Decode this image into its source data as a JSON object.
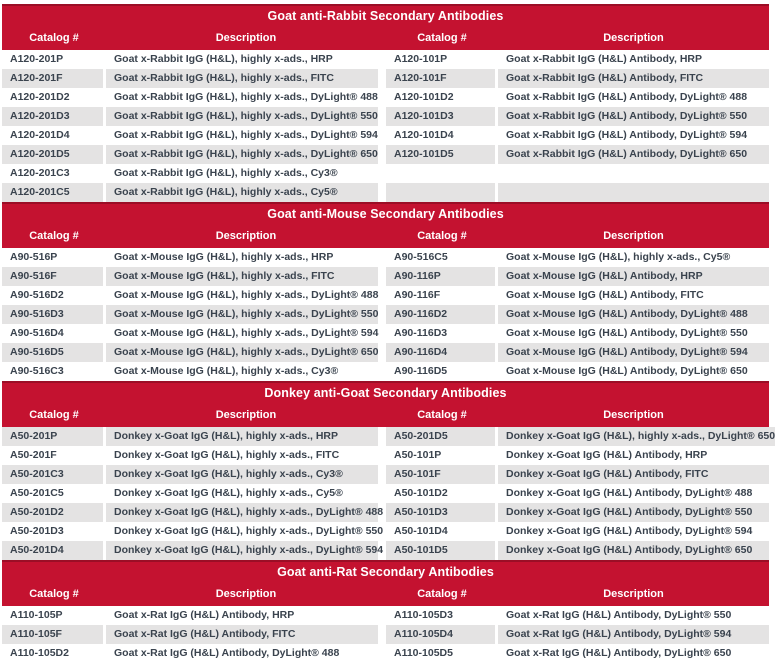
{
  "colors": {
    "bar_red": "#C41230",
    "bar_top_edge_dark_red": "#9B0E26",
    "stripe_gray": "#E4E3E3",
    "text_dark": "#3A434E",
    "header_text": "#FFFFFF"
  },
  "sections": [
    {
      "title": "Goat anti-Rabbit Secondary Antibodies",
      "columns": [
        "Catalog #",
        "Description",
        "Catalog #",
        "Description"
      ],
      "rows": [
        [
          "A120-201P",
          "Goat x-Rabbit IgG (H&L), highly x-ads., HRP",
          "A120-101P",
          "Goat x-Rabbit IgG (H&L) Antibody, HRP"
        ],
        [
          "A120-201F",
          "Goat x-Rabbit IgG (H&L), highly x-ads., FITC",
          "A120-101F",
          "Goat x-Rabbit IgG (H&L) Antibody, FITC"
        ],
        [
          "A120-201D2",
          "Goat x-Rabbit IgG (H&L), highly x-ads., DyLight® 488",
          "A120-101D2",
          "Goat x-Rabbit IgG (H&L) Antibody, DyLight® 488"
        ],
        [
          "A120-201D3",
          "Goat x-Rabbit IgG (H&L), highly x-ads., DyLight® 550",
          "A120-101D3",
          "Goat x-Rabbit IgG (H&L) Antibody, DyLight® 550"
        ],
        [
          "A120-201D4",
          "Goat x-Rabbit IgG (H&L), highly x-ads., DyLight® 594",
          "A120-101D4",
          "Goat x-Rabbit IgG (H&L) Antibody, DyLight® 594"
        ],
        [
          "A120-201D5",
          "Goat x-Rabbit IgG (H&L), highly x-ads., DyLight® 650",
          "A120-101D5",
          "Goat x-Rabbit IgG (H&L) Antibody, DyLight® 650"
        ],
        [
          "A120-201C3",
          "Goat x-Rabbit IgG (H&L), highly x-ads., Cy3®",
          "",
          ""
        ],
        [
          "A120-201C5",
          "Goat x-Rabbit IgG (H&L), highly x-ads., Cy5®",
          "",
          ""
        ]
      ]
    },
    {
      "title": "Goat anti-Mouse Secondary Antibodies",
      "columns": [
        "Catalog #",
        "Description",
        "Catalog #",
        "Description"
      ],
      "rows": [
        [
          "A90-516P",
          "Goat x-Mouse IgG (H&L), highly x-ads., HRP",
          "A90-516C5",
          "Goat x-Mouse IgG (H&L), highly x-ads., Cy5®"
        ],
        [
          "A90-516F",
          "Goat x-Mouse IgG (H&L), highly x-ads., FITC",
          "A90-116P",
          "Goat x-Mouse IgG (H&L) Antibody, HRP"
        ],
        [
          "A90-516D2",
          "Goat x-Mouse IgG (H&L), highly x-ads., DyLight® 488",
          "A90-116F",
          "Goat x-Mouse IgG (H&L) Antibody, FITC"
        ],
        [
          "A90-516D3",
          "Goat x-Mouse IgG (H&L), highly x-ads., DyLight® 550",
          "A90-116D2",
          "Goat x-Mouse IgG (H&L) Antibody, DyLight® 488"
        ],
        [
          "A90-516D4",
          "Goat x-Mouse IgG (H&L), highly x-ads., DyLight® 594",
          "A90-116D3",
          "Goat x-Mouse IgG (H&L) Antibody, DyLight® 550"
        ],
        [
          "A90-516D5",
          "Goat x-Mouse IgG (H&L), highly x-ads., DyLight® 650",
          "A90-116D4",
          "Goat x-Mouse IgG (H&L) Antibody, DyLight® 594"
        ],
        [
          "A90-516C3",
          "Goat x-Mouse IgG (H&L), highly x-ads., Cy3®",
          "A90-116D5",
          "Goat x-Mouse IgG (H&L) Antibody, DyLight® 650"
        ]
      ]
    },
    {
      "title": "Donkey anti-Goat Secondary Antibodies",
      "columns": [
        "Catalog #",
        "Description",
        "Catalog #",
        "Description"
      ],
      "rows": [
        [
          "A50-201P",
          "Donkey x-Goat IgG (H&L), highly x-ads., HRP",
          "A50-201D5",
          "Donkey x-Goat IgG (H&L), highly x-ads., DyLight® 650"
        ],
        [
          "A50-201F",
          "Donkey x-Goat IgG (H&L), highly x-ads., FITC",
          "A50-101P",
          "Donkey x-Goat IgG (H&L) Antibody, HRP"
        ],
        [
          "A50-201C3",
          "Donkey x-Goat IgG (H&L), highly x-ads., Cy3®",
          "A50-101F",
          "Donkey x-Goat IgG (H&L) Antibody, FITC"
        ],
        [
          "A50-201C5",
          "Donkey x-Goat IgG (H&L), highly x-ads., Cy5®",
          "A50-101D2",
          "Donkey x-Goat IgG (H&L) Antibody, DyLight® 488"
        ],
        [
          "A50-201D2",
          "Donkey x-Goat IgG (H&L), highly x-ads., DyLight® 488",
          "A50-101D3",
          "Donkey x-Goat IgG (H&L) Antibody, DyLight® 550"
        ],
        [
          "A50-201D3",
          "Donkey x-Goat IgG (H&L), highly x-ads., DyLight® 550",
          "A50-101D4",
          "Donkey x-Goat IgG (H&L) Antibody, DyLight® 594"
        ],
        [
          "A50-201D4",
          "Donkey x-Goat IgG (H&L), highly x-ads., DyLight® 594",
          "A50-101D5",
          "Donkey x-Goat IgG (H&L) Antibody, DyLight® 650"
        ]
      ]
    },
    {
      "title": "Goat anti-Rat Secondary Antibodies",
      "columns": [
        "Catalog #",
        "Description",
        "Catalog #",
        "Description"
      ],
      "rows": [
        [
          "A110-105P",
          "Goat x-Rat IgG (H&L) Antibody, HRP",
          "A110-105D3",
          "Goat x-Rat IgG (H&L) Antibody, DyLight® 550"
        ],
        [
          "A110-105F",
          "Goat x-Rat IgG (H&L) Antibody, FITC",
          "A110-105D4",
          "Goat x-Rat IgG (H&L) Antibody, DyLight® 594"
        ],
        [
          "A110-105D2",
          "Goat x-Rat IgG (H&L) Antibody, DyLight® 488",
          "A110-105D5",
          "Goat x-Rat IgG (H&L) Antibody, DyLight® 650"
        ]
      ]
    }
  ]
}
